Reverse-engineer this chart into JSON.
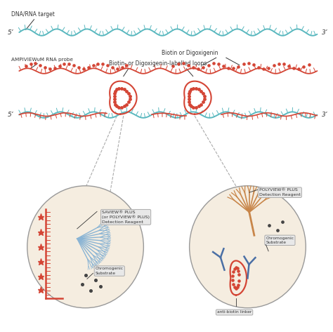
{
  "bg_color": "#ffffff",
  "teal_color": "#5ab8bf",
  "red_color": "#d44535",
  "text_color": "#333333",
  "circle_bg": "#f5ede0",
  "circle_border": "#aaaaaa",
  "blue_reagent": "#8ab4d4",
  "orange_reagent": "#c8864a",
  "blue_antibody": "#4a6fa5",
  "labels": {
    "dna_rna": "DNA/RNA target",
    "ampiview": "AMPIVIEWᴜM RNA probe",
    "biotin_dig": "Biotin or Digoxigenin",
    "loops": "Biotin- or Digoxigenin-labelled loops",
    "saview": "SAVIEW® PLUS\n(or POLYVIEW® PLUS)\nDetection Reagent",
    "chromogenic1": "Chromogenic\nSubstrate",
    "polyview": "POLYVIEW® PLUS\nDetection Reagent",
    "chromogenic2": "Chromogenic\nSubstrate",
    "antibiotin": "anti-biotin linker"
  },
  "five_prime": "5’",
  "three_prime": "3’"
}
